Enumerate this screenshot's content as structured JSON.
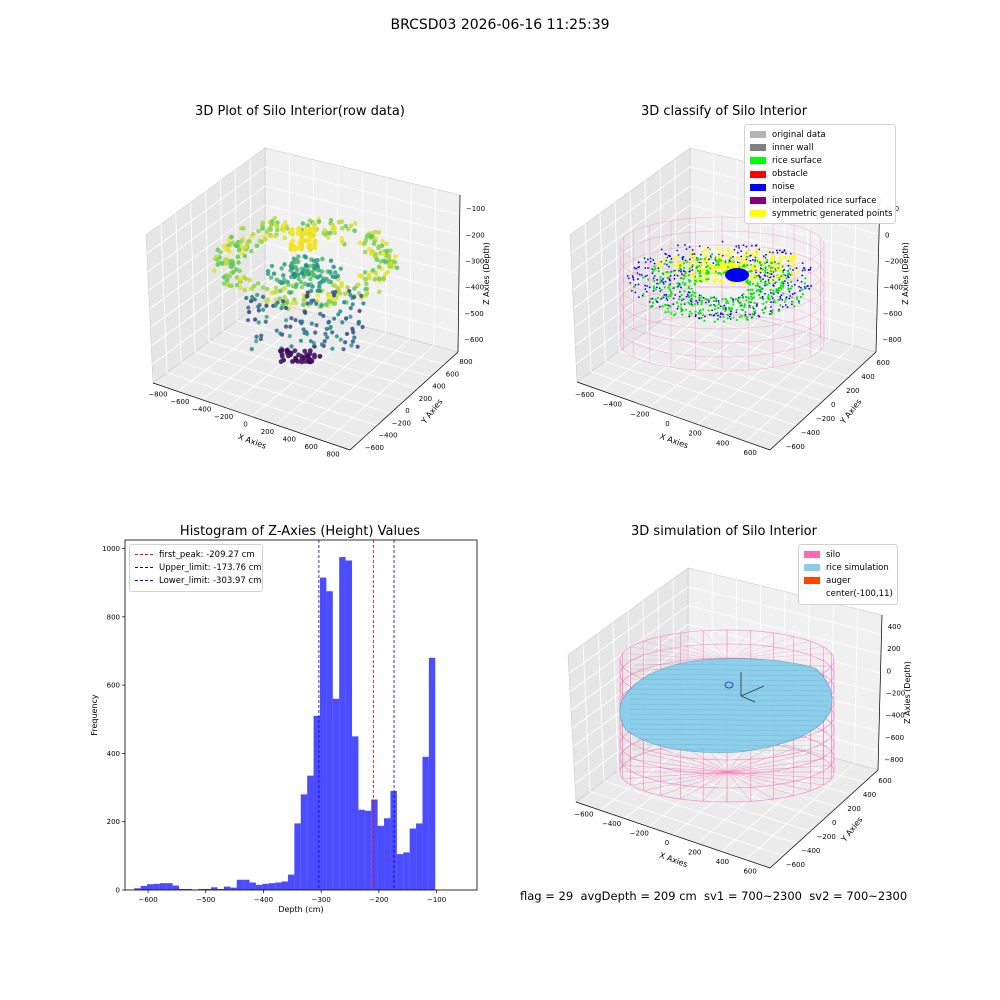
{
  "suptitle": "BRCSD03 2026-06-16 11:25:39",
  "status_text": "flag = 29  avgDepth = 209 cm  sv1 = 700~2300  sv2 = 700~2300",
  "chart_data": [
    {
      "type": "scatter",
      "title": "3D Plot of Silo Interior(row data)",
      "xlabel": "X Axies",
      "ylabel": "Y Axies",
      "zlabel": "Z Axies (Depth)",
      "x_ticks": [
        "−800",
        "−600",
        "−400",
        "−200",
        "0",
        "200",
        "400",
        "600",
        "800"
      ],
      "y_ticks": [
        "−600",
        "−400",
        "−200",
        "0",
        "200",
        "400",
        "600",
        "800"
      ],
      "z_ticks": [
        "−100",
        "−200",
        "−300",
        "−400",
        "−500",
        "−600"
      ],
      "colormap": "viridis"
    },
    {
      "type": "scatter",
      "title": "3D classify of Silo Interior",
      "xlabel": "X Axies",
      "ylabel": "Y Axies",
      "zlabel": "Z Axies (Depth)",
      "x_ticks": [
        "−600",
        "−400",
        "−200",
        "0",
        "200",
        "400",
        "600"
      ],
      "y_ticks": [
        "−600",
        "−400",
        "−200",
        "0",
        "200",
        "400",
        "600"
      ],
      "z_ticks": [
        "200",
        "0",
        "−200",
        "−400",
        "−600",
        "−800"
      ],
      "legend": [
        {
          "label": "original data",
          "color": "#b3b3b3"
        },
        {
          "label": "inner wall",
          "color": "#808080"
        },
        {
          "label": "rice surface",
          "color": "#00ff00"
        },
        {
          "label": "obstacle",
          "color": "#ff0000"
        },
        {
          "label": "noise",
          "color": "#0000ff"
        },
        {
          "label": "interpolated rice surface",
          "color": "#800080"
        },
        {
          "label": "symmetric generated points",
          "color": "#ffff00"
        }
      ]
    },
    {
      "type": "bar",
      "title": "Histogram of Z-Axies (Height) Values",
      "xlabel": "Depth (cm)",
      "ylabel": "Frequency",
      "xlim": [
        -640,
        -30
      ],
      "ylim": [
        0,
        1025
      ],
      "x_ticks": [
        -600,
        -500,
        -400,
        -300,
        -200,
        -100
      ],
      "y_ticks": [
        0,
        200,
        400,
        600,
        800,
        1000
      ],
      "bar_color": "#0000ff",
      "bin_edges_start": -624,
      "bin_width": 11.1,
      "values": [
        5,
        12,
        17,
        18,
        20,
        20,
        13,
        3,
        3,
        1,
        3,
        3,
        8,
        3,
        10,
        7,
        30,
        30,
        22,
        15,
        18,
        20,
        22,
        25,
        45,
        195,
        280,
        335,
        510,
        915,
        875,
        560,
        975,
        965,
        450,
        235,
        232,
        265,
        188,
        210,
        290,
        105,
        110,
        180,
        195,
        390,
        680
      ],
      "lines": [
        {
          "label": "first_peak: -209.27 cm",
          "x": -209.27,
          "color": "#ff0000"
        },
        {
          "label": "Upper_limit: -173.76 cm",
          "x": -173.76,
          "color": "#0000ff"
        },
        {
          "label": "Lower_limit: -303.97 cm",
          "x": -303.97,
          "color": "#0000ff"
        }
      ],
      "legend_position": "upper-left"
    },
    {
      "type": "scatter",
      "title": "3D simulation of Silo Interior",
      "xlabel": "X Axies",
      "ylabel": "Y Axies",
      "zlabel": "Z Axies (Depth)",
      "x_ticks": [
        "−600",
        "−400",
        "−200",
        "0",
        "200",
        "400",
        "600"
      ],
      "y_ticks": [
        "−600",
        "−400",
        "−200",
        "0",
        "200",
        "400",
        "600"
      ],
      "z_ticks": [
        "400",
        "200",
        "0",
        "−200",
        "−400",
        "−600",
        "−800"
      ],
      "legend": [
        {
          "label": "silo",
          "color": "#ff69b4"
        },
        {
          "label": "rice simulation",
          "color": "#87ceeb"
        },
        {
          "label": "auger",
          "color": "#ff4500"
        },
        {
          "label": "center(-100,11)",
          "color": "none"
        }
      ]
    }
  ]
}
